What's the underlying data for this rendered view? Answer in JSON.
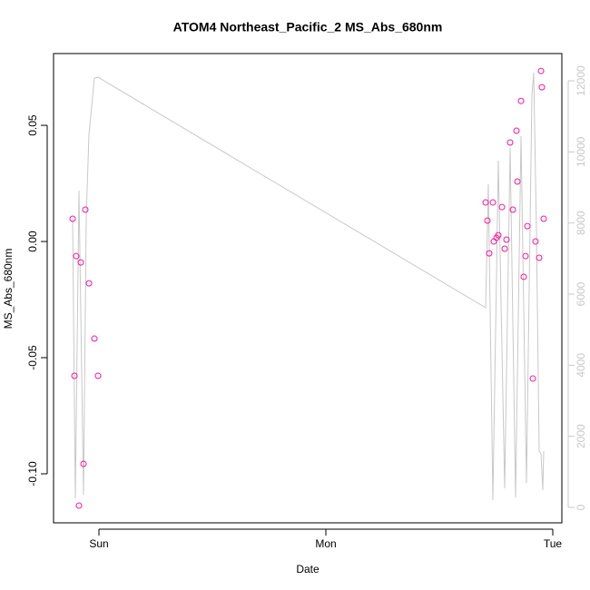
{
  "chart_data": {
    "type": "scatter",
    "title": "ATOM4 Northeast_Pacific_2 MS_Abs_680nm",
    "xlabel": "Date",
    "ylabel": "MS_Abs_680nm",
    "xlim": [
      -0.2,
      2.04
    ],
    "xticks": [
      {
        "value": 0,
        "label": "Sun"
      },
      {
        "value": 1,
        "label": "Mon"
      },
      {
        "value": 2,
        "label": "Tue"
      }
    ],
    "ylim": [
      -0.1211,
      0.0809
    ],
    "yticks": [
      {
        "value": -0.1,
        "label": "-0.10"
      },
      {
        "value": -0.05,
        "label": "-0.05"
      },
      {
        "value": 0,
        "label": "0.00"
      },
      {
        "value": 0.05,
        "label": "0.05"
      }
    ],
    "y2lim": [
      -434,
      12766
    ],
    "y2ticks": [
      0,
      2000,
      4000,
      6000,
      8000,
      10000,
      12000
    ],
    "series": [
      {
        "type": "scatter",
        "color": "#ff1493",
        "x": [
          -0.116,
          -0.108,
          -0.1,
          -0.088,
          -0.08,
          -0.068,
          -0.06,
          -0.044,
          -0.02,
          -0.004,
          1.704,
          1.712,
          1.72,
          1.736,
          1.74,
          1.752,
          1.76,
          1.776,
          1.788,
          1.796,
          1.812,
          1.824,
          1.84,
          1.844,
          1.86,
          1.872,
          1.88,
          1.888,
          1.912,
          1.924,
          1.94,
          1.948,
          1.952,
          1.96
        ],
        "values": [
          0.0098,
          -0.0578,
          -0.0063,
          -0.1137,
          -0.009,
          -0.0957,
          0.0137,
          -0.018,
          -0.0418,
          -0.0578,
          0.0168,
          0.009,
          -0.0051,
          0.0168,
          0.0,
          0.0016,
          0.0027,
          0.0148,
          -0.0031,
          0.0008,
          0.0426,
          0.0137,
          0.0477,
          0.0258,
          0.0605,
          -0.0152,
          -0.0063,
          0.0066,
          -0.059,
          0.0,
          -0.007,
          0.0734,
          0.0664,
          0.0098
        ]
      },
      {
        "type": "line",
        "axis": "y2",
        "color": "#c8c8c8",
        "x": [
          -0.116,
          -0.104,
          -0.088,
          -0.068,
          -0.056,
          -0.044,
          -0.02,
          -0.004,
          1.704,
          1.716,
          1.736,
          1.76,
          1.788,
          1.812,
          1.836,
          1.86,
          1.884,
          1.908,
          1.916,
          1.928,
          1.94,
          1.948,
          1.956,
          1.96
        ],
        "values": [
          8120,
          255,
          8910,
          357,
          8145,
          10490,
          12075,
          12100,
          5617,
          9090,
          204,
          9753,
          536,
          10110,
          281,
          10442,
          689,
          11590,
          12230,
          7760,
          1583,
          1506,
          485,
          1583
        ]
      }
    ]
  }
}
